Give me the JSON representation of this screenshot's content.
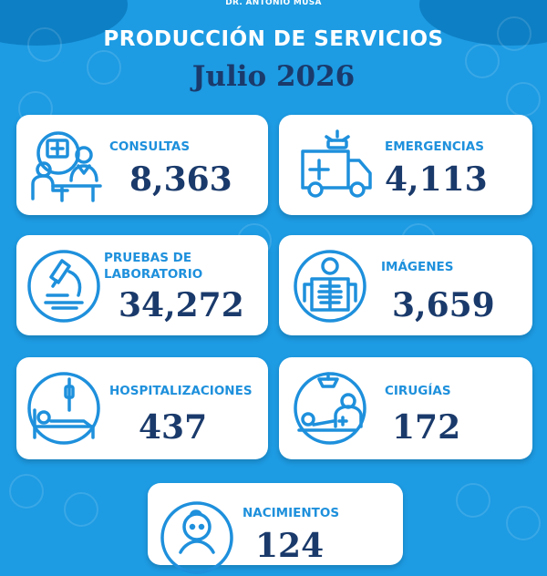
{
  "header": {
    "hospital": "DR. ANTONIO MUSA",
    "title": "PRODUCCIÓN DE SERVICIOS",
    "period": "Julio 2026"
  },
  "colors": {
    "background": "#1d9be3",
    "label": "#1e90dc",
    "value": "#1a3a6b",
    "card": "#ffffff"
  },
  "services": [
    {
      "label": "CONSULTAS",
      "value": "8,363",
      "icon": "doctor-consultation-icon"
    },
    {
      "label": "EMERGENCIAS",
      "value": "4,113",
      "icon": "ambulance-icon"
    },
    {
      "label": "PRUEBAS DE LABORATORIO",
      "value": "34,272",
      "icon": "microscope-icon"
    },
    {
      "label": "IMÁGENES",
      "value": "3,659",
      "icon": "xray-icon"
    },
    {
      "label": "HOSPITALIZACIONES",
      "value": "437",
      "icon": "hospital-bed-icon"
    },
    {
      "label": "CIRUGÍAS",
      "value": "172",
      "icon": "surgery-icon"
    },
    {
      "label": "NACIMIENTOS",
      "value": "124",
      "icon": "baby-icon"
    }
  ]
}
